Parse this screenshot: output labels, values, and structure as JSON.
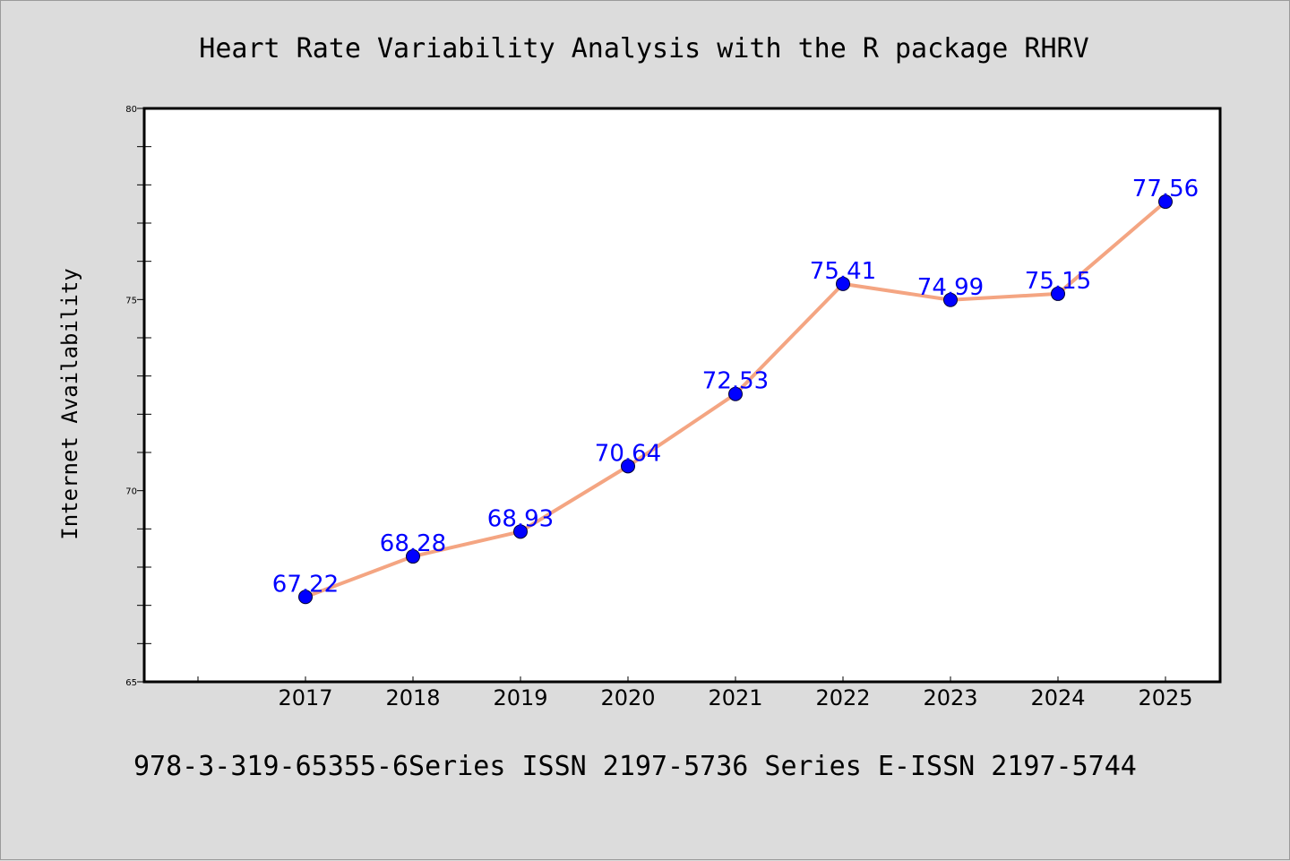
{
  "chart_data": {
    "type": "line",
    "title": "Heart Rate Variability Analysis with the R package RHRV",
    "ylabel": "Internet Availability",
    "xlabel": "",
    "footer": "978-3-319-65355-6Series ISSN 2197-5736 Series E-ISSN 2197-5744",
    "categories": [
      "2017",
      "2018",
      "2019",
      "2020",
      "2021",
      "2022",
      "2023",
      "2024",
      "2025"
    ],
    "series": [
      {
        "values": [
          67.22,
          68.28,
          68.93,
          70.64,
          72.53,
          75.41,
          74.99,
          75.15,
          77.56
        ],
        "data_labels": [
          "67.22",
          "68.28",
          "68.93",
          "70.64",
          "72.53",
          "75.41",
          "74.99",
          "75.15",
          "77.56"
        ]
      }
    ],
    "ylim": [
      65,
      80
    ],
    "yticks": [
      "65",
      "70",
      "75",
      "80"
    ],
    "grid": false,
    "colors": {
      "line": "#f4a582",
      "marker": "#0000ff",
      "label": "#0000ff",
      "background": "#dcdcdc",
      "plot_background": "#ffffff"
    }
  }
}
